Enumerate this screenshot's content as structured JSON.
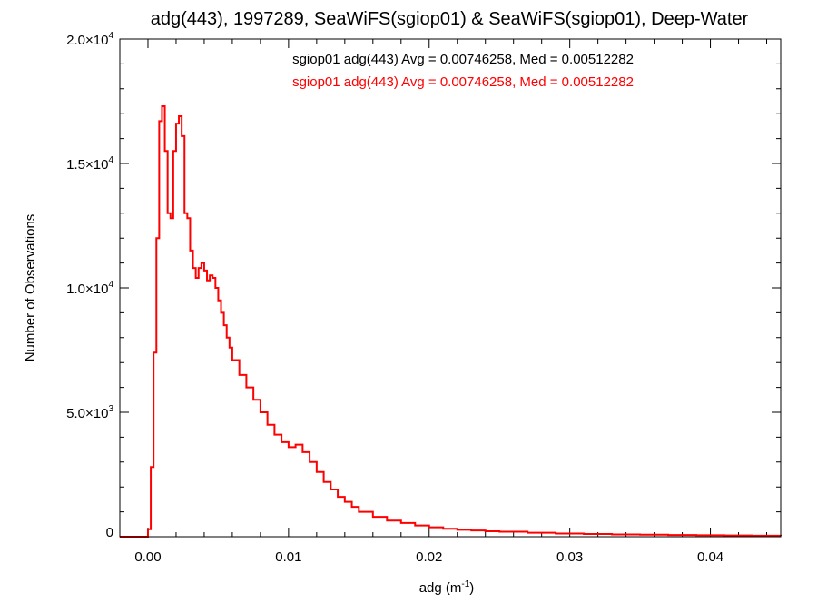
{
  "chart_data": {
    "type": "line",
    "title": "adg(443), 1997289, SeaWiFS(sgiop01) & SeaWiFS(sgiop01), Deep-Water",
    "xlabel": {
      "base": "adg (m",
      "exp": "-1",
      "close": ")"
    },
    "ylabel": "Number of Observations",
    "xlim": [
      -0.002,
      0.045
    ],
    "ylim": [
      0,
      20000
    ],
    "x_ticks": [
      {
        "value": 0.0,
        "label": "0.00"
      },
      {
        "value": 0.01,
        "label": "0.01"
      },
      {
        "value": 0.02,
        "label": "0.02"
      },
      {
        "value": 0.03,
        "label": "0.03"
      },
      {
        "value": 0.04,
        "label": "0.04"
      }
    ],
    "y_ticks": [
      {
        "value": 0,
        "mant": "0",
        "exp": ""
      },
      {
        "value": 5000,
        "mant": "5.0×10",
        "exp": "3"
      },
      {
        "value": 10000,
        "mant": "1.0×10",
        "exp": "4"
      },
      {
        "value": 15000,
        "mant": "1.5×10",
        "exp": "4"
      },
      {
        "value": 20000,
        "mant": "2.0×10",
        "exp": "4"
      }
    ],
    "annotations": [
      {
        "text": "sgiop01 adg(443) Avg = 0.00746258, Med = 0.00512282",
        "color": "#000000"
      },
      {
        "text": "sgiop01 adg(443) Avg = 0.00746258, Med = 0.00512282",
        "color": "#ff0000"
      }
    ],
    "series": [
      {
        "color": "#ff0000",
        "x": [
          -0.002,
          -0.0002,
          0.0,
          0.0002,
          0.0004,
          0.0006,
          0.0008,
          0.001,
          0.0012,
          0.0014,
          0.0016,
          0.0018,
          0.002,
          0.0022,
          0.0024,
          0.0026,
          0.0028,
          0.003,
          0.0032,
          0.0034,
          0.0036,
          0.0038,
          0.004,
          0.0042,
          0.0044,
          0.0046,
          0.0048,
          0.005,
          0.0052,
          0.0054,
          0.0056,
          0.0058,
          0.006,
          0.0065,
          0.007,
          0.0075,
          0.008,
          0.0085,
          0.009,
          0.0095,
          0.01,
          0.0105,
          0.011,
          0.0115,
          0.012,
          0.0125,
          0.013,
          0.0135,
          0.014,
          0.0145,
          0.015,
          0.016,
          0.017,
          0.018,
          0.019,
          0.02,
          0.021,
          0.022,
          0.023,
          0.024,
          0.025,
          0.027,
          0.029,
          0.031,
          0.033,
          0.035,
          0.037,
          0.039,
          0.041,
          0.043,
          0.045
        ],
        "y": [
          0,
          0,
          300,
          2800,
          7400,
          12000,
          16700,
          17300,
          15500,
          13000,
          12800,
          15500,
          16600,
          16900,
          16100,
          13000,
          12800,
          11500,
          10800,
          10400,
          10800,
          11000,
          10700,
          10300,
          10500,
          10400,
          10000,
          9500,
          9000,
          8500,
          8000,
          7600,
          7100,
          6500,
          6000,
          5500,
          5000,
          4500,
          4100,
          3800,
          3600,
          3700,
          3400,
          3000,
          2600,
          2200,
          1900,
          1600,
          1400,
          1200,
          1000,
          800,
          650,
          550,
          450,
          380,
          320,
          280,
          250,
          220,
          200,
          160,
          130,
          110,
          90,
          80,
          70,
          60,
          50,
          40,
          30
        ]
      }
    ]
  }
}
